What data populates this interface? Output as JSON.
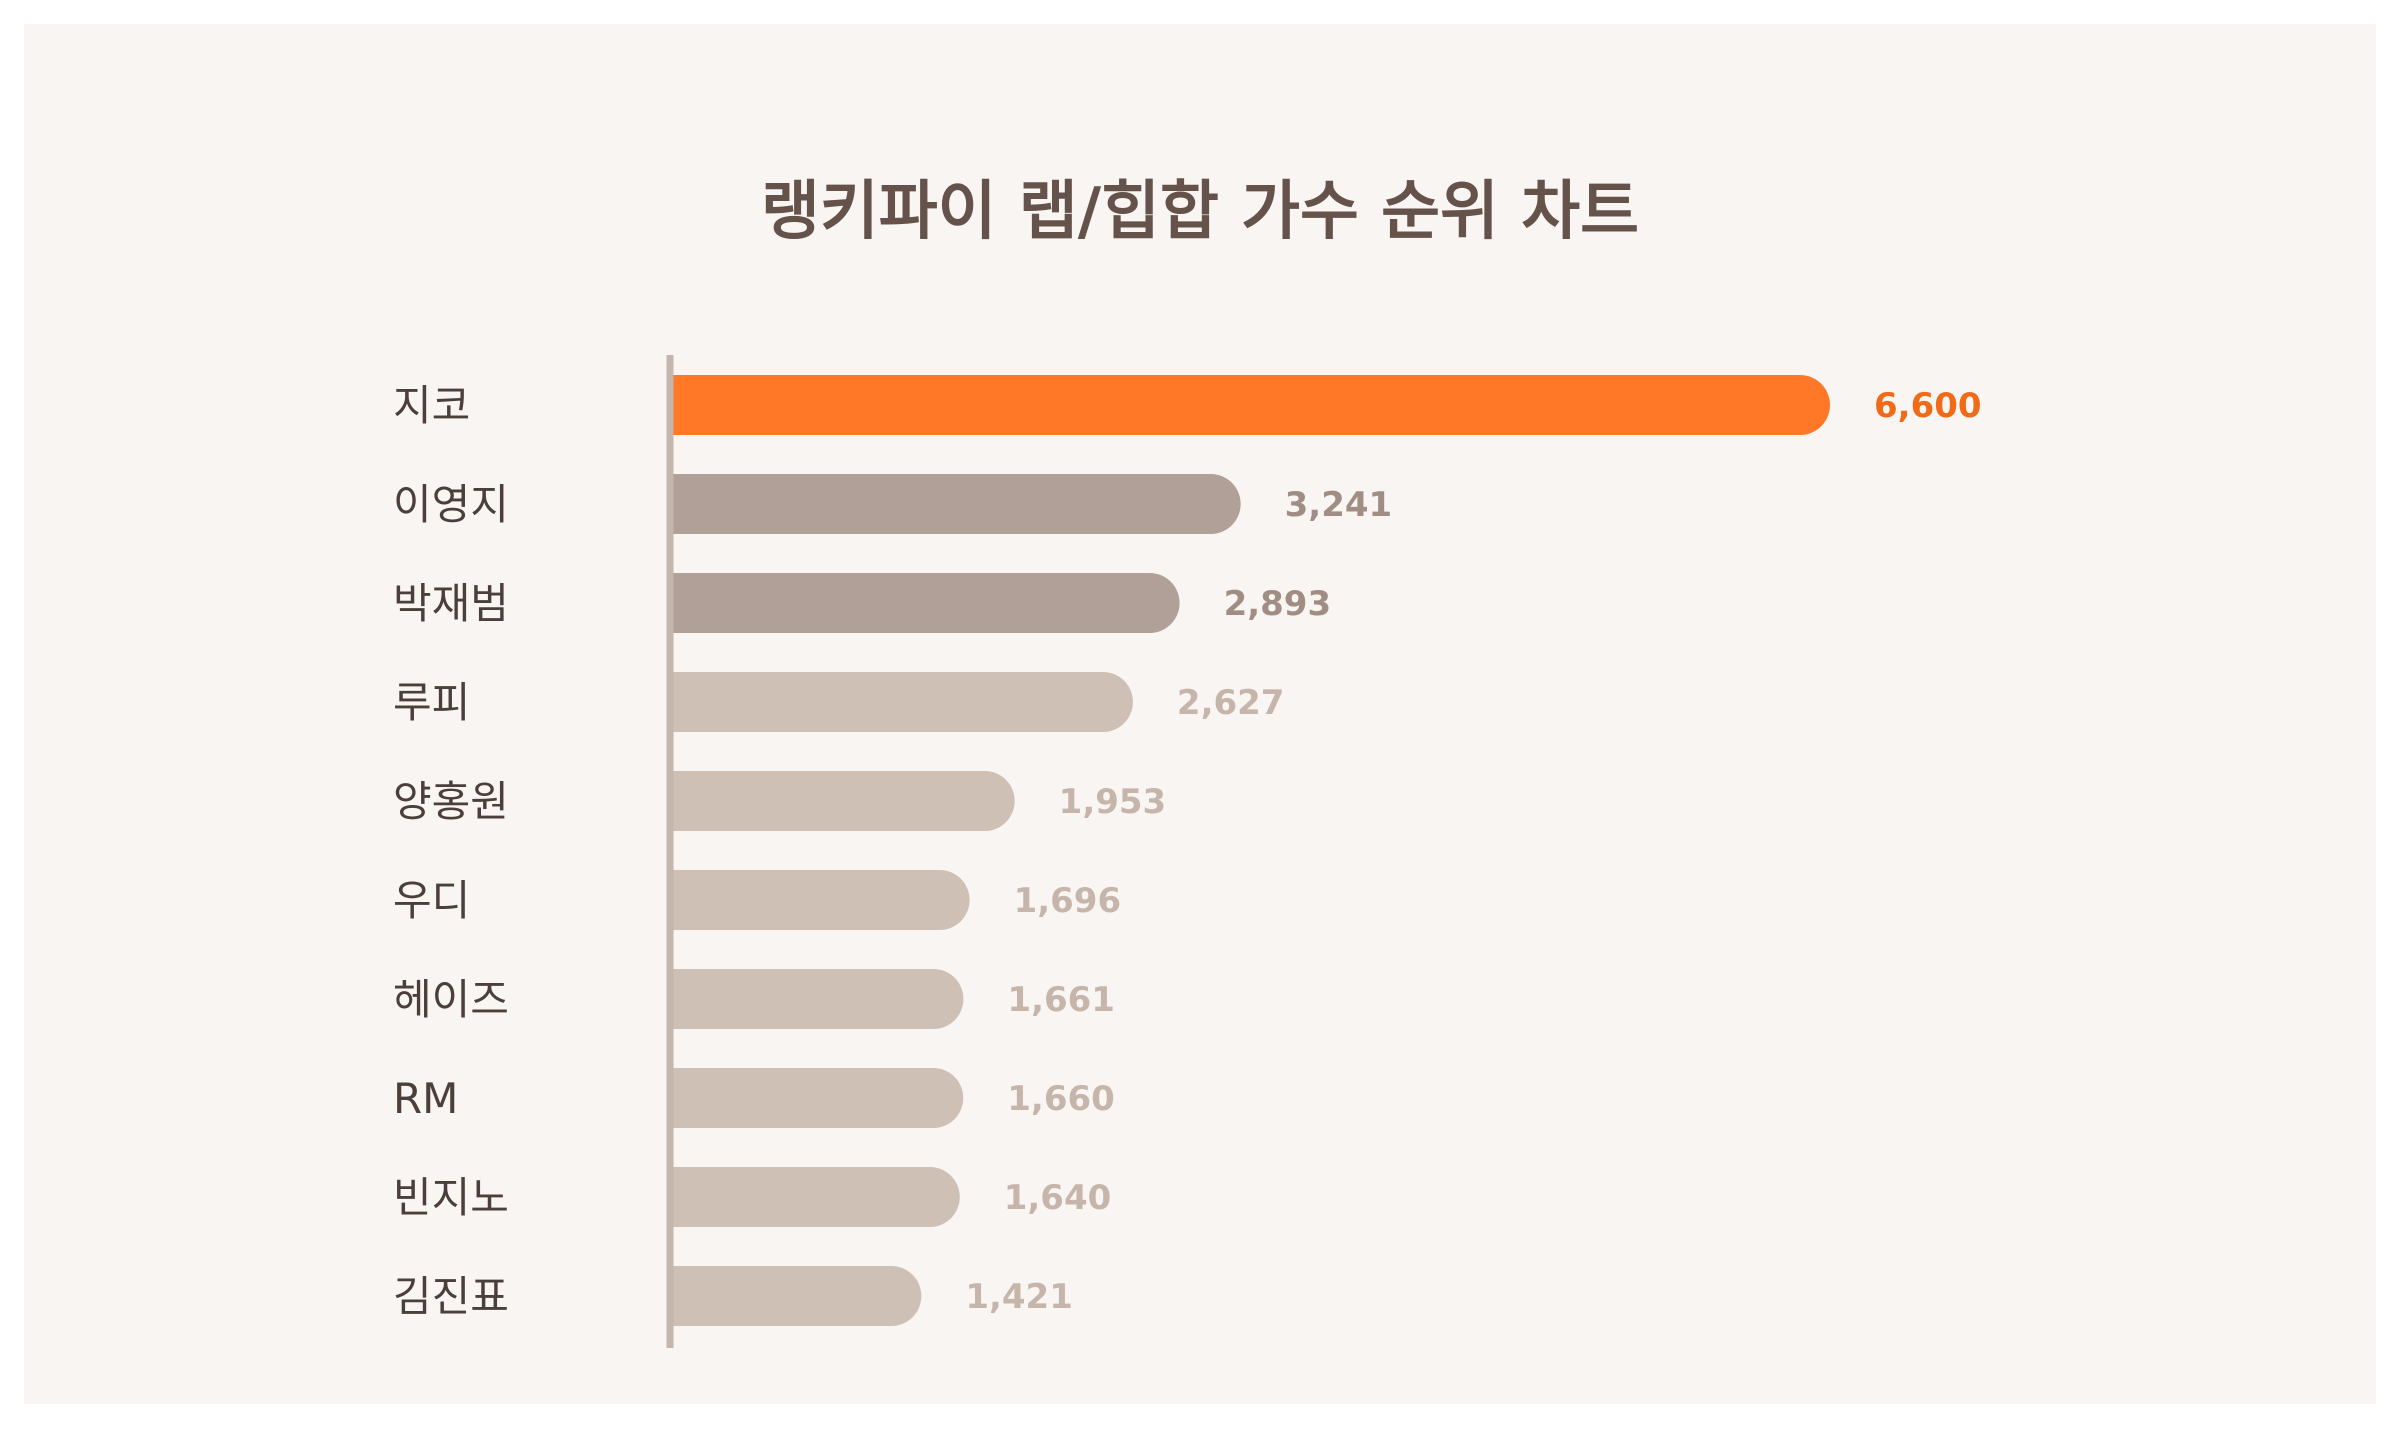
{
  "chart_data": {
    "type": "bar",
    "orientation": "horizontal",
    "title": "랭키파이 랩/힙합 가수 순위 차트",
    "categories": [
      "지코",
      "이영지",
      "박재범",
      "루피",
      "양홍원",
      "우디",
      "헤이즈",
      "RM",
      "빈지노",
      "김진표"
    ],
    "values": [
      6600,
      3241,
      2893,
      2627,
      1953,
      1696,
      1661,
      1660,
      1640,
      1421
    ],
    "value_labels": [
      "6,600",
      "3,241",
      "2,893",
      "2,627",
      "1,953",
      "1,696",
      "1,661",
      "1,660",
      "1,640",
      "1,421"
    ],
    "xlim": [
      0,
      6600
    ],
    "grid": false,
    "legend": "none",
    "colors": {
      "highlight_bar": "#ff7828",
      "highlight_label": "#f06a17",
      "mid_bar": "#b0a098",
      "mid_label": "#a08e84",
      "light_bar": "#cfc0b6",
      "light_label": "#c6b5aa",
      "axis_line": "#c5b6ad",
      "background": "#f9f5f3",
      "title": "#65534b"
    },
    "tiers": [
      "highlight",
      "mid",
      "mid",
      "light",
      "light",
      "light",
      "light",
      "light",
      "light",
      "light"
    ]
  }
}
